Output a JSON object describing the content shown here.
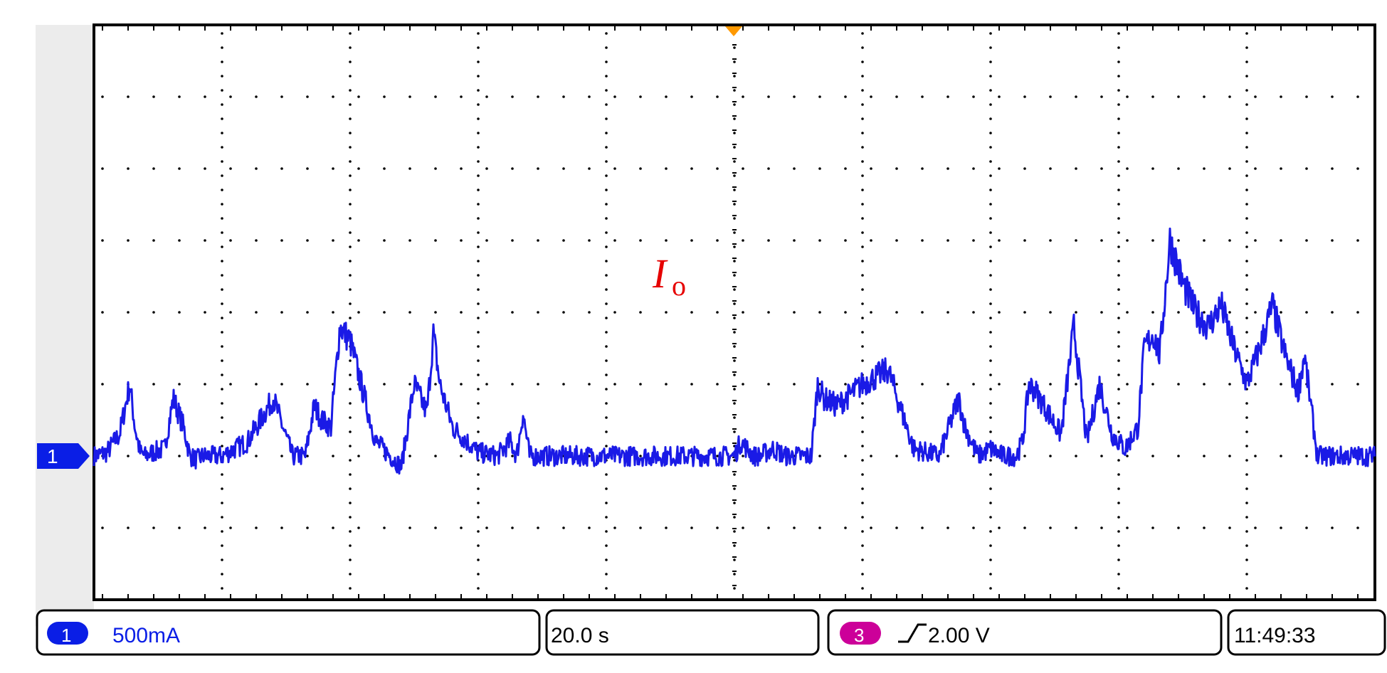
{
  "trace": {
    "channel": "1",
    "label_main": "I",
    "label_sub": "o",
    "color": "#1a1ae6",
    "label_color": "#e60000"
  },
  "status": {
    "ch1_number": "1",
    "ch1_scale": "500mA",
    "timebase": "20.0 s",
    "trigger_channel": "3",
    "trigger_level": "2.00 V",
    "clock": "11:49:33",
    "ch1_color": "#0a1ee6",
    "ch3_color": "#cc0099"
  },
  "chart_data": {
    "type": "line",
    "x_divisions": 10,
    "y_divisions": 8,
    "time_per_div_s": 20,
    "ch1_scale_mA_per_div": 500,
    "ground_level_div": 0,
    "grid": true,
    "series": [
      {
        "x_div": [
          0.0,
          0.1,
          0.2,
          0.28,
          0.32,
          0.36,
          0.4,
          0.46,
          0.55,
          0.62,
          0.7,
          0.75,
          0.8,
          0.85,
          0.9,
          1.0,
          1.2,
          1.4,
          1.55,
          1.65,
          1.72,
          1.78,
          1.85,
          1.92,
          2.0,
          2.2,
          2.4,
          2.5,
          2.6,
          2.65,
          2.7,
          2.8,
          3.0,
          3.15,
          3.25,
          3.3,
          3.35,
          3.4,
          3.48,
          3.55,
          3.7,
          3.8,
          3.9,
          4.0,
          4.1,
          4.2,
          4.3,
          4.4,
          4.5,
          4.6,
          4.7,
          4.8,
          4.9,
          5.0,
          5.05,
          5.1,
          5.15,
          5.2,
          5.3,
          5.4,
          5.5,
          5.55,
          5.6,
          5.65,
          5.7,
          5.8,
          6.0,
          6.2,
          6.4,
          6.6,
          6.75,
          6.8,
          6.9,
          7.0,
          7.1,
          7.2,
          7.25,
          7.3,
          7.35,
          7.45,
          7.55,
          7.65,
          7.75,
          7.85,
          7.95,
          8.05,
          8.15,
          8.2,
          8.27,
          8.32,
          8.4,
          8.5,
          8.6,
          8.7,
          8.8,
          8.9,
          9.0,
          9.1,
          9.2,
          9.3,
          9.4,
          9.45,
          9.5,
          9.55,
          9.6,
          9.7,
          9.8,
          9.9,
          10.0
        ],
        "y_div": [
          0.0,
          0.05,
          0.3,
          1.0,
          0.4,
          0.05,
          0.0,
          0.05,
          0.1,
          0.8,
          0.4,
          0.0,
          -0.05,
          0.0,
          0.0,
          0.0,
          0.2,
          0.8,
          0.0,
          0.0,
          0.7,
          0.5,
          0.4,
          1.8,
          1.6,
          0.2,
          -0.15,
          1.0,
          0.6,
          1.7,
          1.0,
          0.4,
          0.05,
          0.0,
          0.2,
          0.0,
          0.6,
          0.0,
          0.0,
          0.0,
          0.0,
          0.0,
          0.0,
          0.0,
          0.0,
          0.0,
          0.0,
          0.0,
          0.0,
          0.0,
          0.0,
          0.0,
          0.0,
          0.0,
          0.2,
          0.1,
          0.0,
          0.0,
          0.1,
          0.0,
          0.0,
          0.0,
          0.0,
          1.0,
          0.8,
          0.7,
          1.0,
          1.2,
          0.1,
          0.0,
          0.8,
          0.4,
          0.0,
          0.1,
          0.0,
          0.0,
          0.2,
          1.0,
          0.9,
          0.6,
          0.3,
          1.8,
          0.2,
          1.0,
          0.3,
          0.1,
          0.4,
          1.5,
          1.7,
          1.4,
          3.0,
          2.4,
          2.0,
          1.8,
          2.1,
          1.5,
          1.0,
          1.5,
          2.1,
          1.4,
          0.9,
          1.4,
          0.7,
          0.0,
          0.0,
          0.0,
          0.0,
          0.0,
          0.0
        ]
      }
    ]
  }
}
